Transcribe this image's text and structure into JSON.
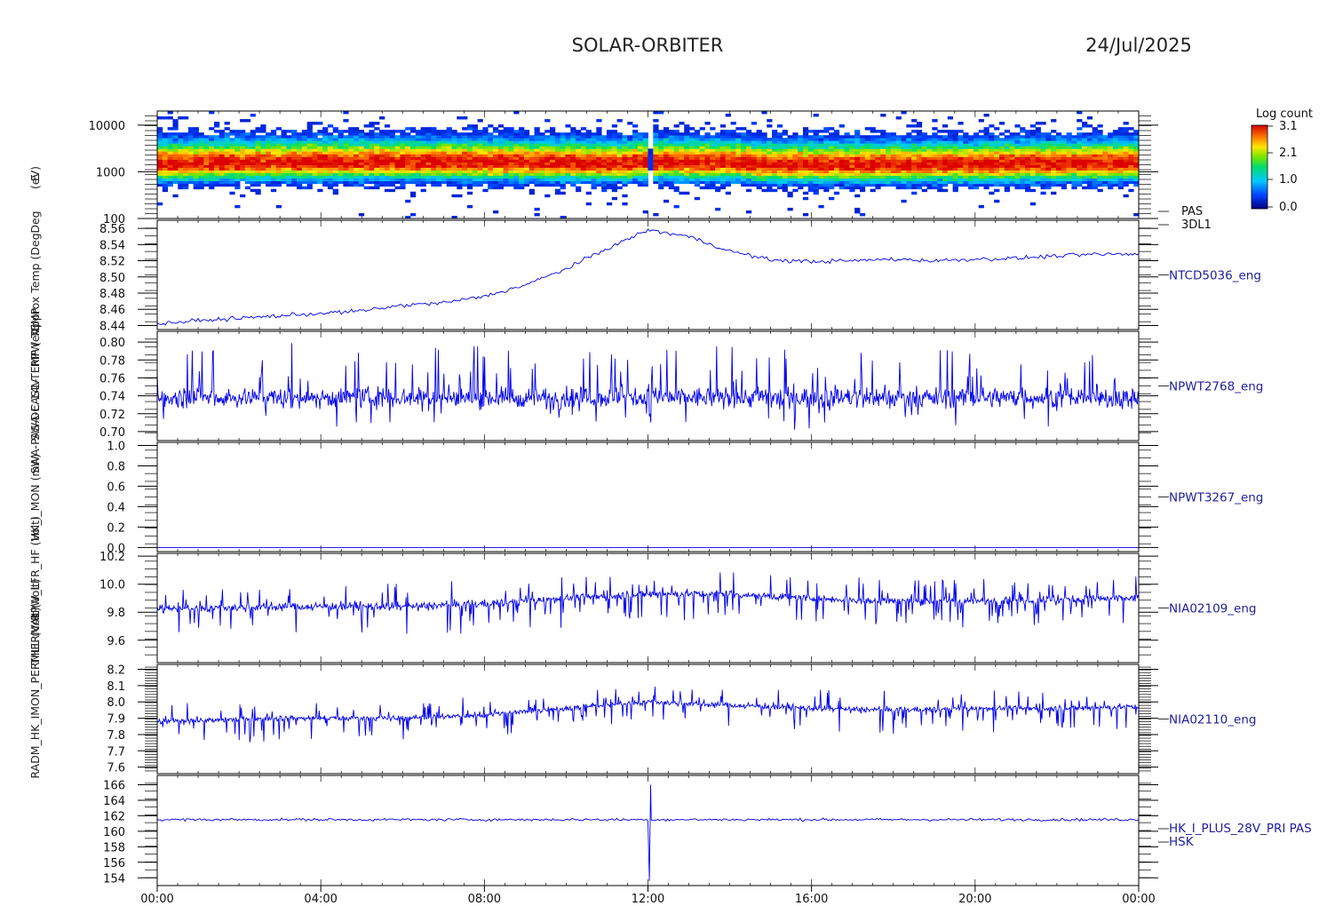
{
  "header": {
    "title": "SOLAR-ORBITER",
    "date": "24/Jul/2025"
  },
  "colorbar": {
    "title": "Log count",
    "ticks": [
      "3.1",
      "2.1",
      "1.0",
      "0.0"
    ]
  },
  "x_axis": {
    "ticks": [
      "00:00",
      "04:00",
      "08:00",
      "12:00",
      "16:00",
      "20:00",
      "00:00"
    ]
  },
  "ylabels": [
    "(eV)",
    "E",
    "Deg",
    "Approx Temp (Deg",
    "RPW TEMP",
    "SWA-EAS1-TEMP (eV)",
    "SWA-PAS-DC 14V",
    "HK_I_MON (mA)",
    "RPW_LFR_HF (Volt)",
    "THERMAL (Volt)",
    "RADM_HK_IMON_PERMLL (Volt)"
  ],
  "chart_data": [
    {
      "type": "heatmap",
      "labels": [
        "PAS",
        "3DL1"
      ],
      "ylabel": "E (eV)",
      "y_scale": "log",
      "yticks": [
        "10000",
        "1000",
        "100"
      ],
      "ylim": [
        100,
        20000
      ],
      "colorbar_range": [
        0.0,
        3.1
      ],
      "peak_energy_eV": 1500
    },
    {
      "type": "line",
      "label": "NTCD5036_eng",
      "yticks": [
        "8.56",
        "8.54",
        "8.52",
        "8.50",
        "8.48",
        "8.46",
        "8.44"
      ],
      "ylim": [
        8.435,
        8.57
      ],
      "x_hours": [
        0,
        1,
        2,
        3,
        4,
        5,
        6,
        7,
        8,
        9,
        10,
        11,
        12,
        13,
        14,
        15,
        16,
        17,
        18,
        19,
        20,
        21,
        22,
        23,
        24
      ],
      "values": [
        8.442,
        8.446,
        8.449,
        8.452,
        8.455,
        8.458,
        8.465,
        8.468,
        8.476,
        8.49,
        8.51,
        8.535,
        8.558,
        8.55,
        8.532,
        8.521,
        8.519,
        8.52,
        8.522,
        8.52,
        8.522,
        8.523,
        8.526,
        8.528,
        8.528
      ]
    },
    {
      "type": "line",
      "label": "NPWT2768_eng",
      "yticks": [
        "0.80",
        "0.78",
        "0.76",
        "0.74",
        "0.72",
        "0.70"
      ],
      "ylim": [
        0.69,
        0.812
      ],
      "baseline": 0.738,
      "noise_amplitude": 0.045
    },
    {
      "type": "line",
      "label": "NPWT3267_eng",
      "yticks": [
        "1.0",
        "0.8",
        "0.6",
        "0.4",
        "0.2",
        "0.0"
      ],
      "ylim": [
        -0.04,
        1.03
      ],
      "values_constant": 0.0
    },
    {
      "type": "line",
      "label": "NIA02109_eng",
      "yticks": [
        "10.2",
        "10.0",
        "9.8",
        "9.6"
      ],
      "ylim": [
        9.44,
        10.22
      ],
      "x_hours": [
        0,
        3,
        6,
        8,
        9,
        10,
        12,
        14,
        16,
        18,
        20,
        22,
        24
      ],
      "values": [
        9.82,
        9.84,
        9.84,
        9.86,
        9.88,
        9.9,
        9.93,
        9.93,
        9.9,
        9.88,
        9.88,
        9.89,
        9.9
      ]
    },
    {
      "type": "line",
      "label": "NIA02110_eng",
      "yticks": [
        "8.2",
        "8.1",
        "8.0",
        "7.9",
        "7.8",
        "7.7",
        "7.6"
      ],
      "ylim": [
        7.56,
        8.23
      ],
      "x_hours": [
        0,
        3,
        6,
        8,
        9,
        10,
        12,
        14,
        16,
        18,
        20,
        22,
        24
      ],
      "values": [
        7.88,
        7.9,
        7.9,
        7.92,
        7.94,
        7.96,
        8.0,
        7.98,
        7.96,
        7.95,
        7.96,
        7.96,
        7.97
      ]
    },
    {
      "type": "line",
      "labels": [
        "HK_I_PLUS_28V_PRI PAS",
        "HSK"
      ],
      "yticks": [
        "166",
        "164",
        "162",
        "160",
        "158",
        "156",
        "154"
      ],
      "ylim": [
        153,
        167.2
      ],
      "baseline": 161.5,
      "spike_time_hour": 12.05,
      "spike_min": 153.6,
      "spike_max": 166.0
    }
  ]
}
